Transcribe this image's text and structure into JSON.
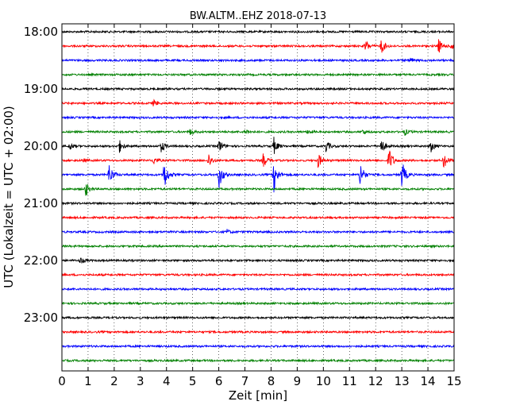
{
  "chart_data": {
    "type": "line",
    "title": "BW.ALTM..EHZ 2018-07-13",
    "xlabel": "Zeit  [min]",
    "ylabel": "UTC (Lokalzeit = UTC + 02:00)",
    "xlim": [
      0,
      15
    ],
    "x_ticks": [
      0,
      1,
      2,
      3,
      4,
      5,
      6,
      7,
      8,
      9,
      10,
      11,
      12,
      13,
      14,
      15
    ],
    "y_tick_labels": [
      "18:00",
      "19:00",
      "20:00",
      "21:00",
      "22:00",
      "23:00"
    ],
    "trace_interval_minutes": 15,
    "trace_colors": [
      "#000000",
      "#ff0000",
      "#0000ff",
      "#008000"
    ],
    "grid_vertical": "dotted",
    "traces": [
      {
        "time": "18:00",
        "color": "#000000",
        "events": []
      },
      {
        "time": "18:15",
        "color": "#ff0000",
        "events": [
          [
            11.6,
            1.2
          ],
          [
            12.2,
            1.5
          ],
          [
            14.4,
            1.3
          ],
          [
            14.9,
            1.0
          ]
        ]
      },
      {
        "time": "18:30",
        "color": "#0000ff",
        "events": [
          [
            13.3,
            0.6
          ]
        ]
      },
      {
        "time": "18:45",
        "color": "#008000",
        "events": []
      },
      {
        "time": "19:00",
        "color": "#000000",
        "events": []
      },
      {
        "time": "19:15",
        "color": "#ff0000",
        "events": [
          [
            3.5,
            0.6
          ]
        ]
      },
      {
        "time": "19:30",
        "color": "#0000ff",
        "events": []
      },
      {
        "time": "19:45",
        "color": "#008000",
        "events": [
          [
            4.9,
            0.6
          ],
          [
            7.0,
            0.5
          ],
          [
            9.4,
            0.4
          ],
          [
            11.5,
            0.5
          ],
          [
            13.1,
            0.6
          ]
        ]
      },
      {
        "time": "20:00",
        "color": "#000000",
        "events": [
          [
            0.3,
            0.7
          ],
          [
            2.2,
            1.0
          ],
          [
            3.8,
            1.1
          ],
          [
            6.0,
            1.3
          ],
          [
            8.1,
            1.5
          ],
          [
            10.1,
            1.1
          ],
          [
            12.2,
            1.5
          ],
          [
            14.1,
            1.1
          ]
        ]
      },
      {
        "time": "20:15",
        "color": "#ff0000",
        "events": [
          [
            0.8,
            0.3
          ],
          [
            3.5,
            0.8
          ],
          [
            5.6,
            1.4
          ],
          [
            7.7,
            1.2
          ],
          [
            9.8,
            1.4
          ],
          [
            12.5,
            2.5
          ],
          [
            14.6,
            1.5
          ]
        ]
      },
      {
        "time": "20:30",
        "color": "#0000ff",
        "events": [
          [
            1.8,
            2.2
          ],
          [
            3.9,
            3.0
          ],
          [
            6.0,
            2.6
          ],
          [
            8.1,
            3.0
          ],
          [
            11.4,
            2.4
          ],
          [
            13.0,
            2.6
          ]
        ]
      },
      {
        "time": "20:45",
        "color": "#008000",
        "events": [
          [
            0.9,
            1.4
          ]
        ]
      },
      {
        "time": "21:00",
        "color": "#000000",
        "events": []
      },
      {
        "time": "21:15",
        "color": "#ff0000",
        "events": []
      },
      {
        "time": "21:30",
        "color": "#0000ff",
        "events": [
          [
            6.3,
            0.4
          ]
        ]
      },
      {
        "time": "21:45",
        "color": "#008000",
        "events": []
      },
      {
        "time": "22:00",
        "color": "#000000",
        "events": [
          [
            0.7,
            0.6
          ]
        ]
      },
      {
        "time": "22:15",
        "color": "#ff0000",
        "events": []
      },
      {
        "time": "22:30",
        "color": "#0000ff",
        "events": []
      },
      {
        "time": "22:45",
        "color": "#008000",
        "events": []
      },
      {
        "time": "23:00",
        "color": "#000000",
        "events": []
      },
      {
        "time": "23:15",
        "color": "#ff0000",
        "events": []
      },
      {
        "time": "23:30",
        "color": "#0000ff",
        "events": []
      },
      {
        "time": "23:45",
        "color": "#008000",
        "events": []
      }
    ]
  }
}
